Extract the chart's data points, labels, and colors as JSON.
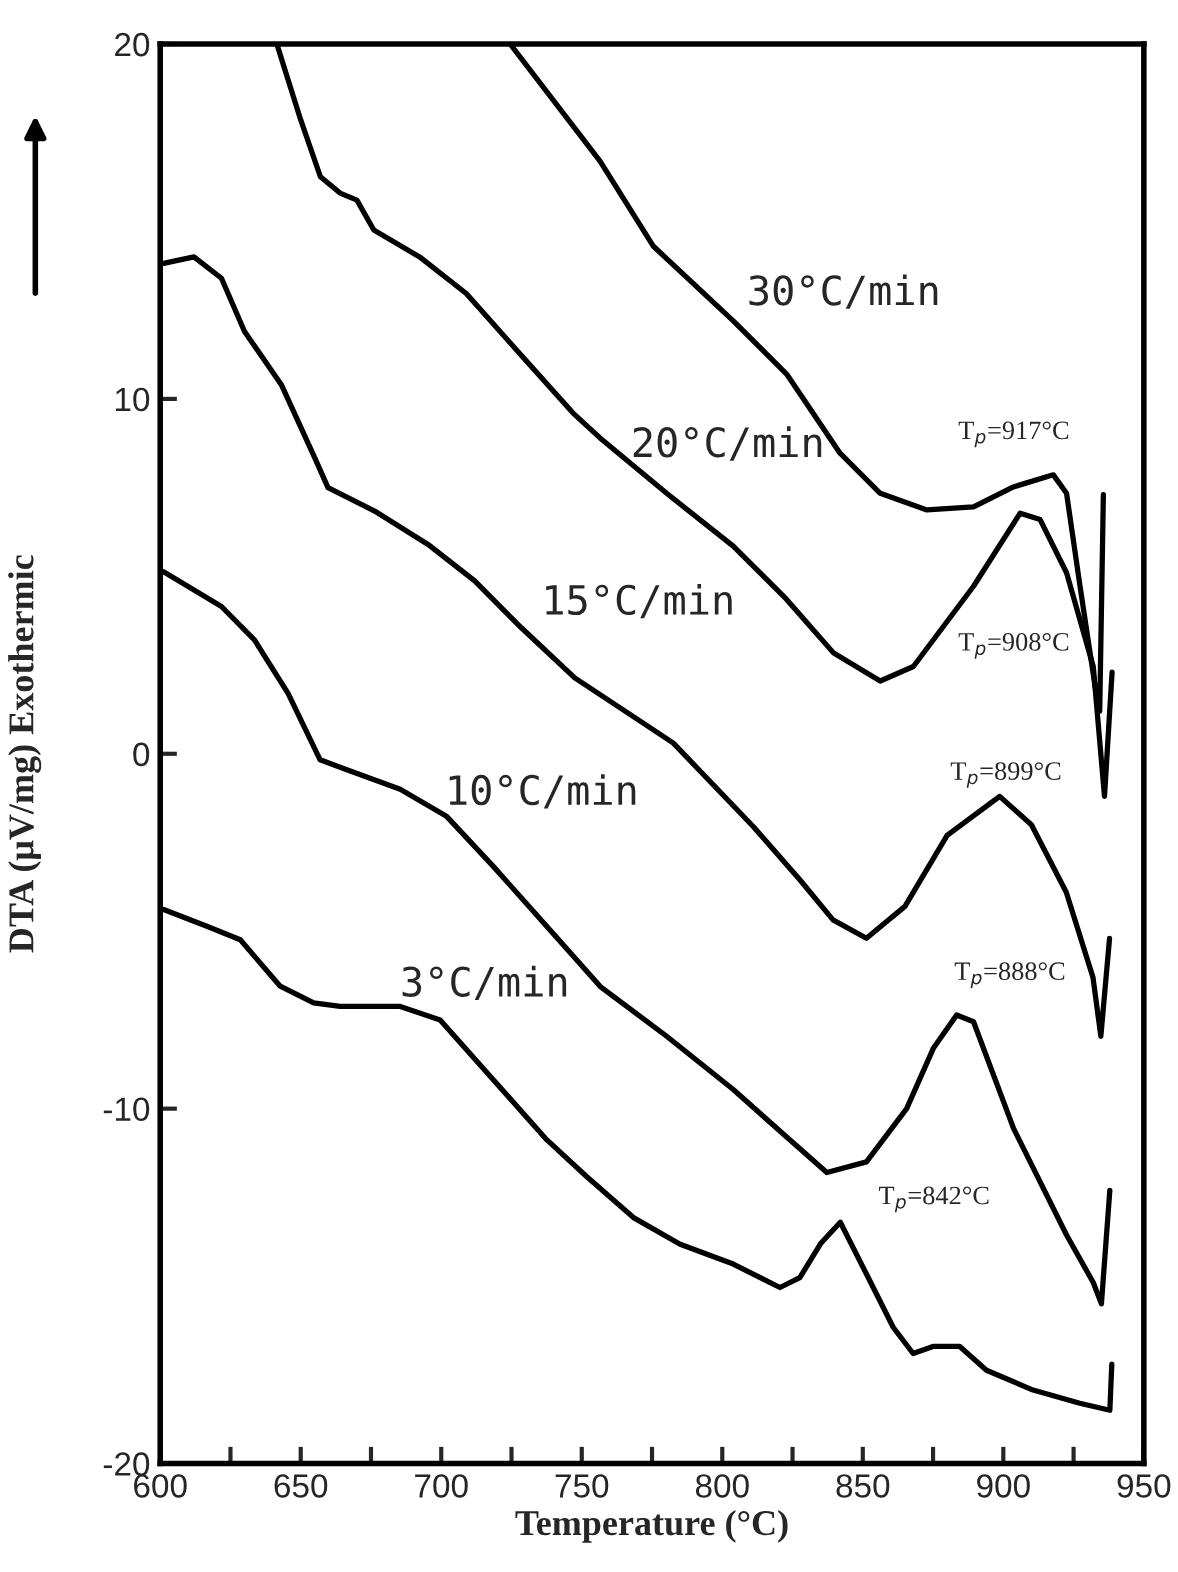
{
  "chart_data": {
    "type": "line",
    "xlabel": "Temperature (°C)",
    "ylabel": "DTA (μV/mg) Exothermic",
    "xlim": [
      600,
      950
    ],
    "ylim": [
      -20,
      20
    ],
    "xticks": [
      600,
      {
        "value": 625,
        "label": null
      },
      650,
      {
        "value": 675,
        "label": null
      },
      700,
      {
        "value": 725,
        "label": null
      },
      750,
      {
        "value": 775,
        "label": null
      },
      800,
      {
        "value": 825,
        "label": null
      },
      850,
      {
        "value": 875,
        "label": null
      },
      900,
      {
        "value": 925,
        "label": null
      },
      950
    ],
    "yticks": [
      -20,
      -10,
      0,
      10,
      20
    ],
    "grid": false,
    "legend": false,
    "marker": "none",
    "line_style": "solid",
    "series": [
      {
        "name": "30°C/min",
        "color": "#000000",
        "x": [
          724.5,
          756.5,
          775.5,
          803.9,
          822.9,
          841.9,
          856.2,
          872.8,
          889.4,
          903.6,
          917.8,
          922.5,
          927.3,
          933.2,
          934.3,
          935.6
        ],
        "values": [
          20,
          16.7,
          14.3,
          12.2,
          10.7,
          8.47,
          7.34,
          6.87,
          6.96,
          7.52,
          7.86,
          7.34,
          4.72,
          1.62,
          1.2,
          7.3
        ]
      },
      {
        "name": "20°C/min",
        "color": "#000000",
        "x": [
          641.5,
          650,
          657,
          664,
          670,
          676,
          692.3,
          708.9,
          727.9,
          746.9,
          756.5,
          780.2,
          803.9,
          822.9,
          839.5,
          856.2,
          868,
          889.4,
          906,
          913.1,
          922.5,
          932,
          936,
          938.7
        ],
        "values": [
          20,
          17.86,
          16.26,
          15.8,
          15.6,
          14.76,
          14.0,
          12.97,
          11.28,
          9.6,
          8.9,
          7.34,
          5.85,
          4.35,
          2.85,
          2.05,
          2.46,
          4.72,
          6.78,
          6.6,
          5.1,
          2.46,
          -1.2,
          2.3
        ]
      },
      {
        "name": "15°C/min",
        "color": "#000000",
        "x": [
          601.2,
          612,
          621.8,
          630,
          643.1,
          655,
          659.7,
          676.3,
          695.3,
          711.9,
          728.5,
          747.5,
          771.2,
          782.6,
          811,
          827.6,
          839.4,
          851.3,
          865,
          880,
          898.7,
          910,
          922.4,
          931.9,
          934.7,
          937.8
        ],
        "values": [
          13.82,
          14.0,
          13.4,
          11.9,
          10.4,
          8.34,
          7.5,
          6.84,
          5.9,
          4.87,
          3.55,
          2.14,
          0.9,
          0.3,
          -2.05,
          -3.55,
          -4.68,
          -5.2,
          -4.3,
          -2.3,
          -1.2,
          -2.0,
          -3.9,
          -6.3,
          -7.96,
          -5.2
        ]
      },
      {
        "name": "10°C/min",
        "color": "#000000",
        "x": [
          601.2,
          621.8,
          633.6,
          645.5,
          656.9,
          666.4,
          685.4,
          702,
          718.6,
          737.6,
          756.6,
          780.2,
          803.9,
          822.9,
          837.2,
          851.3,
          865.6,
          875.1,
          883.4,
          889.4,
          903.6,
          922.5,
          932,
          934.9,
          937.9
        ],
        "values": [
          5.13,
          4.15,
          3.2,
          1.7,
          -0.17,
          -0.45,
          -1.0,
          -1.77,
          -3.18,
          -4.87,
          -6.56,
          -7.96,
          -9.46,
          -10.8,
          -11.8,
          -11.5,
          -10.0,
          -8.3,
          -7.36,
          -7.55,
          -10.55,
          -13.56,
          -14.9,
          -15.5,
          -12.3
        ]
      },
      {
        "name": "3°C/min",
        "color": "#000000",
        "x": [
          601.2,
          616.6,
          628.5,
          642.7,
          654.6,
          664,
          685.4,
          699.6,
          718.6,
          737.6,
          751.8,
          768.4,
          785,
          803.9,
          820.5,
          827.6,
          835,
          842,
          851.3,
          860.8,
          867.9,
          875,
          884.5,
          894,
          910.6,
          927.2,
          937.9,
          938.6
        ],
        "values": [
          -4.39,
          -4.86,
          -5.24,
          -6.55,
          -7.02,
          -7.12,
          -7.12,
          -7.5,
          -9.19,
          -10.88,
          -11.92,
          -13.07,
          -13.82,
          -14.38,
          -15.04,
          -14.76,
          -13.8,
          -13.2,
          -14.66,
          -16.16,
          -16.9,
          -16.7,
          -16.7,
          -17.37,
          -17.93,
          -18.3,
          -18.5,
          -17.2
        ]
      }
    ],
    "annotations": [
      "T$_{p}$=917°C",
      "T$_{p}$=908°C",
      "T$_{p}$=899°C",
      "T$_{p}$=888°C",
      "T$_{p}$=842°C"
    ]
  }
}
